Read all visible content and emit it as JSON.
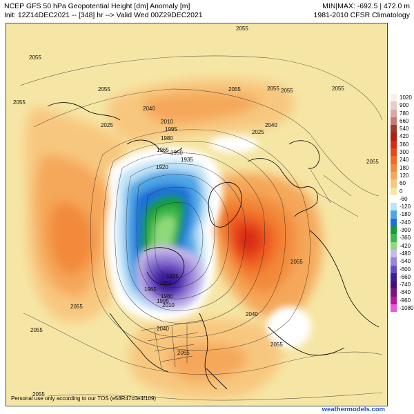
{
  "header": {
    "line1": "NCEP GFS 50 hPa Geopotential Height [dm] Anomaly [m]",
    "line2": "Init: 12Z14DEC2021 -- [348] hr --> Valid Wed 00Z29DEC2021",
    "minmax": "MIN|MAX: -692.5 | 472.0 m",
    "climatology": "1981-2010 CFSR Climatology"
  },
  "legend": [
    {
      "label": "1020",
      "color": "#f7f0f0"
    },
    {
      "label": "900",
      "color": "#e8cccc"
    },
    {
      "label": "780",
      "color": "#d9a8a6"
    },
    {
      "label": "660",
      "color": "#c47a72"
    },
    {
      "label": "540",
      "color": "#9e3a2c"
    },
    {
      "label": "420",
      "color": "#b01e10"
    },
    {
      "label": "360",
      "color": "#d72b14"
    },
    {
      "label": "300",
      "color": "#e9481b"
    },
    {
      "label": "240",
      "color": "#f16a27"
    },
    {
      "label": "180",
      "color": "#f28a3a"
    },
    {
      "label": "120",
      "color": "#f5a75a"
    },
    {
      "label": "60",
      "color": "#f8c77f"
    },
    {
      "label": "0",
      "color": "#f6e6a5"
    },
    {
      "label": "-60",
      "color": "#ffffff"
    },
    {
      "label": "-120",
      "color": "#bfe3f7"
    },
    {
      "label": "-180",
      "color": "#4fa6e6"
    },
    {
      "label": "-240",
      "color": "#1b6fd6"
    },
    {
      "label": "-300",
      "color": "#129a3c"
    },
    {
      "label": "-360",
      "color": "#3cb84a"
    },
    {
      "label": "-420",
      "color": "#8fd97a"
    },
    {
      "label": "-480",
      "color": "#c8b9ec"
    },
    {
      "label": "-540",
      "color": "#9a85d8"
    },
    {
      "label": "-600",
      "color": "#6a4cc2"
    },
    {
      "label": "-660",
      "color": "#3a1f99"
    },
    {
      "label": "-740",
      "color": "#4a0e73"
    },
    {
      "label": "-840",
      "color": "#7a1580"
    },
    {
      "label": "-960",
      "color": "#b21aa0"
    },
    {
      "label": "-1080",
      "color": "#ee55e0"
    }
  ],
  "contours": {
    "c2055": "2055",
    "c2040": "2040",
    "c2025": "2025",
    "c2010": "2010",
    "c1995": "1995",
    "c1980": "1980",
    "c1965": "1965",
    "c1950": "1950",
    "c1935": "1935",
    "c1920": "1920"
  },
  "footer": {
    "usage": "Personal use only according to our TOS (e58R47c0e4f109)",
    "brand": "weathermodels.com"
  }
}
